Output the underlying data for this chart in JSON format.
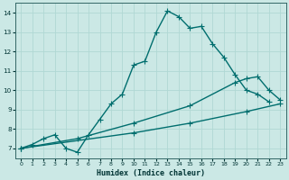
{
  "xlabel": "Humidex (Indice chaleur)",
  "bg_color": "#cbe8e5",
  "grid_color": "#b0d8d4",
  "line_color": "#006e6e",
  "xlim": [
    -0.5,
    23.5
  ],
  "ylim": [
    6.5,
    14.5
  ],
  "xticks": [
    0,
    1,
    2,
    3,
    4,
    5,
    6,
    7,
    8,
    9,
    10,
    11,
    12,
    13,
    14,
    15,
    16,
    17,
    18,
    19,
    20,
    21,
    22,
    23
  ],
  "yticks": [
    7,
    8,
    9,
    10,
    11,
    12,
    13,
    14
  ],
  "line1_x": [
    0,
    1,
    2,
    3,
    4,
    5,
    6,
    7,
    8,
    9,
    10,
    11,
    12,
    13,
    14,
    15,
    16,
    17,
    18,
    19,
    20,
    21,
    22
  ],
  "line1_y": [
    7.0,
    7.2,
    7.5,
    7.7,
    7.0,
    6.8,
    7.7,
    8.5,
    9.3,
    9.8,
    11.3,
    11.5,
    13.0,
    14.1,
    13.8,
    13.2,
    13.3,
    12.4,
    11.7,
    10.8,
    10.0,
    9.8,
    9.4
  ],
  "line2_x": [
    0,
    5,
    10,
    15,
    19,
    20,
    21,
    22,
    23
  ],
  "line2_y": [
    7.0,
    7.5,
    8.3,
    9.2,
    10.4,
    10.6,
    10.7,
    10.0,
    9.5
  ],
  "line3_x": [
    0,
    10,
    15,
    20,
    23
  ],
  "line3_y": [
    7.0,
    7.8,
    8.3,
    8.9,
    9.3
  ]
}
